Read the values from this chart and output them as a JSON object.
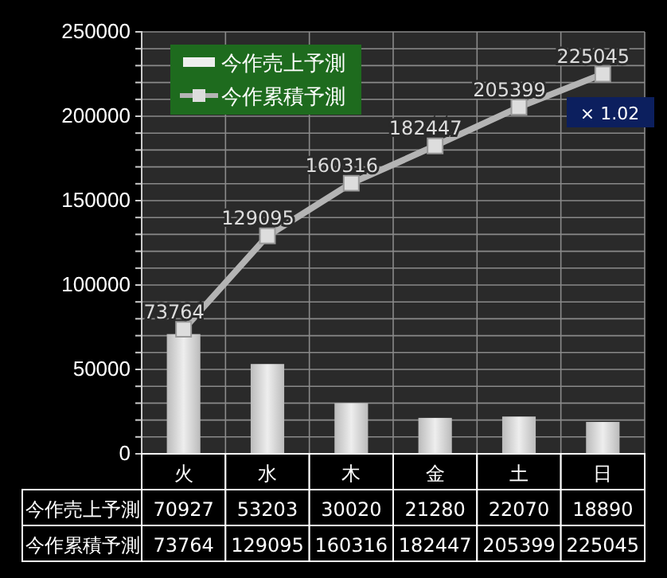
{
  "chart_data": {
    "type": "bar",
    "categories": [
      "火",
      "水",
      "木",
      "金",
      "土",
      "日"
    ],
    "series": [
      {
        "name": "今作売上予測",
        "color": "#eeeeee",
        "values": [
          70927,
          53203,
          30020,
          21280,
          22070,
          18890
        ]
      },
      {
        "name": "今作累積予測",
        "type": "line",
        "color": "#b4b4b4",
        "values": [
          73764,
          129095,
          160316,
          182447,
          205399,
          225045
        ]
      }
    ],
    "ylim": [
      0,
      250000
    ],
    "yticks": [
      0,
      {
        "value": 10000,
        "label": null
      },
      {
        "value": 20000,
        "label": null
      },
      {
        "value": 30000,
        "label": null
      },
      {
        "value": 40000,
        "label": null
      },
      50000,
      {
        "value": 60000,
        "label": null
      },
      {
        "value": 70000,
        "label": null
      },
      {
        "value": 80000,
        "label": null
      },
      {
        "value": 90000,
        "label": null
      },
      100000,
      {
        "value": 110000,
        "label": null
      },
      {
        "value": 120000,
        "label": null
      },
      {
        "value": 130000,
        "label": null
      },
      {
        "value": 140000,
        "label": null
      },
      150000,
      {
        "value": 160000,
        "label": null
      },
      {
        "value": 170000,
        "label": null
      },
      {
        "value": 180000,
        "label": null
      },
      {
        "value": 190000,
        "label": null
      },
      200000,
      {
        "value": 210000,
        "label": null
      },
      {
        "value": 220000,
        "label": null
      },
      {
        "value": 230000,
        "label": null
      },
      {
        "value": 240000,
        "label": null
      },
      250000
    ],
    "grid": true,
    "legend": "top left",
    "marker": "square",
    "line_style": "solid",
    "data_labels": true,
    "annotations": [
      {
        "text": "73764",
        "x": "火",
        "y": 73764
      },
      {
        "text": "129095",
        "x": "水",
        "y": 129095
      },
      {
        "text": "160316",
        "x": "木",
        "y": 160316
      },
      {
        "text": "182447",
        "x": "金",
        "y": 182447
      },
      {
        "text": "205399",
        "x": "土",
        "y": 205399
      },
      {
        "text": "225045",
        "x": "日",
        "y": 225045
      },
      "× 1.02"
    ]
  }
}
